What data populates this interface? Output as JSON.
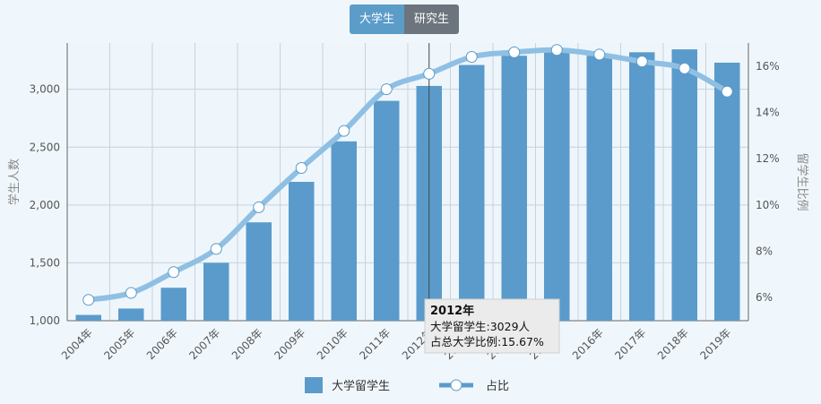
{
  "tabs": {
    "undergrad": "大学生",
    "grad": "研究生"
  },
  "chart_data": {
    "type": "bar",
    "categories": [
      "2004年",
      "2005年",
      "2006年",
      "2007年",
      "2008年",
      "2009年",
      "2010年",
      "2011年",
      "2012年",
      "2013年",
      "2014年",
      "2015年",
      "2016年",
      "2017年",
      "2018年",
      "2019年"
    ],
    "ylabel": "学生人数",
    "y2label": "留学生比例",
    "ylim": [
      1000,
      3400
    ],
    "y2lim": [
      5,
      17
    ],
    "yticks": [
      "1,000",
      "1,500",
      "2,000",
      "2,500",
      "3,000"
    ],
    "y2ticks": [
      "6%",
      "8%",
      "10%",
      "12%",
      "14%",
      "16%"
    ],
    "grid": true,
    "legend_position": "bottom",
    "bar_color": "#5a9bcb",
    "line_color": "#8fc0e3",
    "series": [
      {
        "name": "大学留学生",
        "type": "bar",
        "axis": "left",
        "values": [
          1050,
          1105,
          1285,
          1500,
          1850,
          2200,
          2550,
          2900,
          3029,
          3210,
          3290,
          3330,
          3290,
          3320,
          3345,
          3230
        ]
      },
      {
        "name": "占比",
        "type": "line",
        "axis": "right",
        "values": [
          5.9,
          6.2,
          7.1,
          8.1,
          9.9,
          11.6,
          13.2,
          15.0,
          15.67,
          16.4,
          16.6,
          16.7,
          16.5,
          16.2,
          15.9,
          14.9
        ]
      }
    ],
    "tooltip": {
      "title": "2012年",
      "line1": "大学留学生:3029人",
      "line2": "占总大学比例:15.67%"
    }
  }
}
